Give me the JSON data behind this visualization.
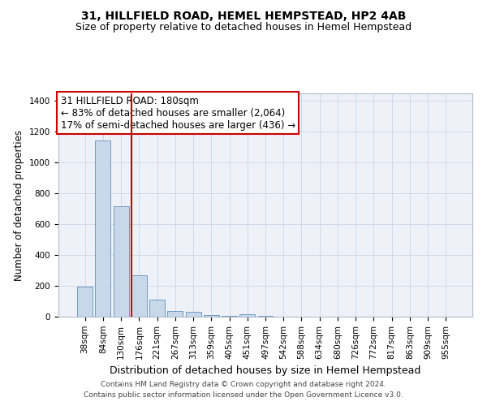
{
  "title1": "31, HILLFIELD ROAD, HEMEL HEMPSTEAD, HP2 4AB",
  "title2": "Size of property relative to detached houses in Hemel Hempstead",
  "xlabel": "Distribution of detached houses by size in Hemel Hempstead",
  "ylabel": "Number of detached properties",
  "footnote1": "Contains HM Land Registry data © Crown copyright and database right 2024.",
  "footnote2": "Contains public sector information licensed under the Open Government Licence v3.0.",
  "categories": [
    "38sqm",
    "84sqm",
    "130sqm",
    "176sqm",
    "221sqm",
    "267sqm",
    "313sqm",
    "359sqm",
    "405sqm",
    "451sqm",
    "497sqm",
    "542sqm",
    "588sqm",
    "634sqm",
    "680sqm",
    "726sqm",
    "772sqm",
    "817sqm",
    "863sqm",
    "909sqm",
    "955sqm"
  ],
  "values": [
    195,
    1145,
    715,
    270,
    110,
    35,
    30,
    10,
    5,
    15,
    5,
    2,
    0,
    0,
    0,
    0,
    0,
    0,
    0,
    0,
    0
  ],
  "bar_color": "#c8d8ea",
  "bar_edge_color": "#6090b8",
  "red_line_index": 3,
  "red_line_color": "#cc0000",
  "annotation_text": "31 HILLFIELD ROAD: 180sqm\n← 83% of detached houses are smaller (2,064)\n17% of semi-detached houses are larger (436) →",
  "annotation_box_color": "#ffffff",
  "annotation_box_edge": "#cc0000",
  "ylim": [
    0,
    1450
  ],
  "yticks": [
    0,
    200,
    400,
    600,
    800,
    1000,
    1200,
    1400
  ],
  "grid_color": "#d0d8ea",
  "bg_color": "#eef2f8",
  "title1_fontsize": 10,
  "title2_fontsize": 9,
  "xlabel_fontsize": 9,
  "ylabel_fontsize": 8.5,
  "annot_fontsize": 8.5,
  "tick_fontsize": 7.5
}
